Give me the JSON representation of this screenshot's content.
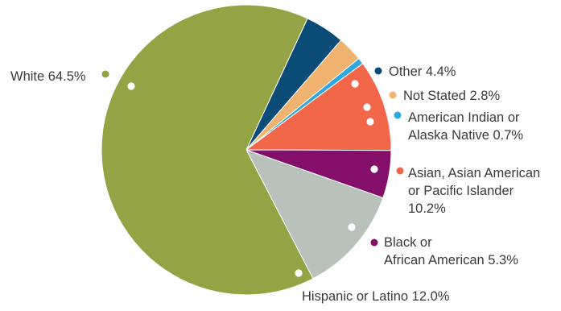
{
  "chart_data": {
    "type": "pie",
    "start_position": "top, clockwise from Other",
    "slices": [
      {
        "label_lines": [
          "Other 4.4%"
        ],
        "category": "Other",
        "value": 4.4,
        "color": "#0B4B77"
      },
      {
        "label_lines": [
          "Not Stated 2.8%"
        ],
        "category": "Not Stated",
        "value": 2.8,
        "color": "#F0B36F"
      },
      {
        "label_lines": [
          "American Indian or",
          "Alaska Native 0.7%"
        ],
        "category": "American Indian or Alaska Native",
        "value": 0.7,
        "color": "#2EA8DF"
      },
      {
        "label_lines": [
          "Asian, Asian American",
          "or Pacific Islander",
          "10.2%"
        ],
        "category": "Asian, Asian American or Pacific Islander",
        "value": 10.2,
        "color": "#F2674A"
      },
      {
        "label_lines": [
          "Black or",
          "African American 5.3%"
        ],
        "category": "Black or African American",
        "value": 5.3,
        "color": "#830F6B"
      },
      {
        "label_lines": [
          "Hispanic or Latino 12.0%"
        ],
        "category": "Hispanic or Latino",
        "value": 12.0,
        "color": "#B9C1BB"
      },
      {
        "label_lines": [
          "White 64.5%"
        ],
        "category": "White",
        "value": 64.5,
        "color": "#94A444"
      }
    ]
  }
}
